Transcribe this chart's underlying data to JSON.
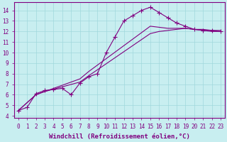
{
  "background_color": "#c8eef0",
  "line_color": "#800080",
  "marker": "+",
  "markersize": 4,
  "linewidth": 0.8,
  "xlabel": "Windchill (Refroidissement éolien,°C)",
  "xlabel_color": "#800080",
  "xlabel_fontsize": 6.5,
  "ylabel_ticks": [
    4,
    5,
    6,
    7,
    8,
    9,
    10,
    11,
    12,
    13,
    14
  ],
  "xtick_labels": [
    "0",
    "1",
    "2",
    "3",
    "4",
    "5",
    "6",
    "7",
    "8",
    "9",
    "10",
    "11",
    "12",
    "13",
    "14",
    "15",
    "16",
    "17",
    "18",
    "19",
    "20",
    "21",
    "22",
    "23"
  ],
  "xlim": [
    -0.5,
    23.5
  ],
  "ylim": [
    3.8,
    14.8
  ],
  "grid_color": "#a0d8dc",
  "tick_color": "#800080",
  "tick_fontsize": 5.5,
  "series": [
    {
      "x": [
        0,
        1,
        2,
        3,
        4,
        5,
        6,
        7,
        8,
        9,
        10,
        11,
        12,
        13,
        14,
        15,
        16,
        17,
        18,
        19,
        20,
        21,
        22,
        23
      ],
      "y": [
        4.5,
        4.8,
        6.1,
        6.4,
        6.5,
        6.6,
        6.0,
        7.1,
        7.7,
        8.0,
        10.0,
        11.5,
        13.0,
        13.5,
        14.0,
        14.3,
        13.8,
        13.3,
        12.8,
        12.5,
        12.2,
        12.1,
        12.1,
        12.0
      ]
    },
    {
      "x": [
        0,
        2,
        3,
        7,
        8,
        15,
        16,
        17,
        18,
        19,
        20,
        21,
        22,
        23
      ],
      "y": [
        4.5,
        6.0,
        6.3,
        7.2,
        7.8,
        11.8,
        12.0,
        12.1,
        12.2,
        12.3,
        12.2,
        12.1,
        12.0,
        12.0
      ]
    },
    {
      "x": [
        0,
        2,
        3,
        7,
        8,
        15,
        16,
        17,
        18,
        19,
        20,
        21,
        22,
        23
      ],
      "y": [
        4.5,
        6.0,
        6.3,
        7.5,
        8.2,
        12.5,
        12.4,
        12.3,
        12.3,
        12.3,
        12.2,
        12.2,
        12.1,
        12.1
      ]
    }
  ]
}
